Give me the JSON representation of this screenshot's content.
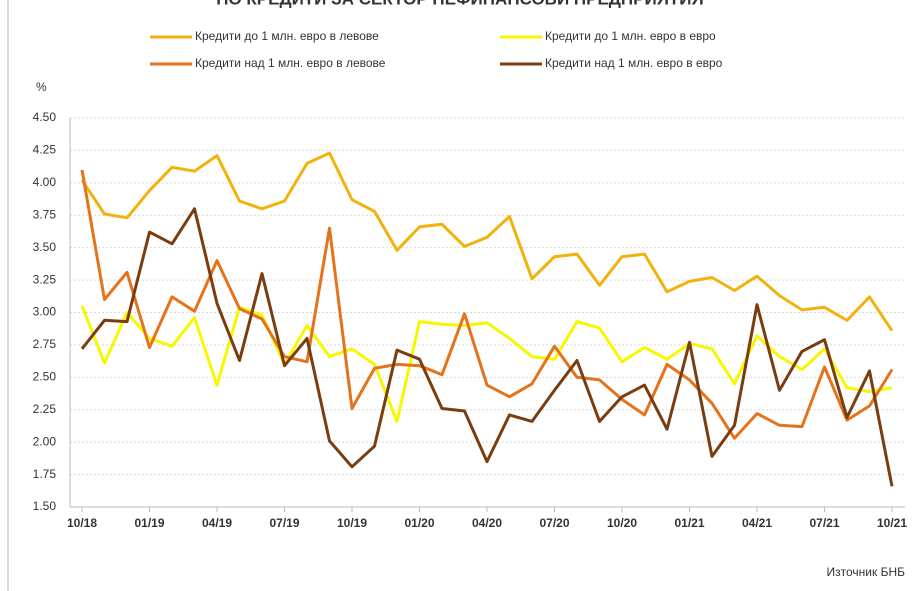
{
  "chart_data": {
    "type": "line",
    "title": "ПО КРЕДИТИ ЗА СЕКТОР НЕФИНАНСОВИ ПРЕДПРИЯТИЯ",
    "y_label": "%",
    "source": "Източник БНБ",
    "categories": [
      "10/18",
      null,
      null,
      "01/19",
      null,
      null,
      "04/19",
      null,
      null,
      "07/19",
      null,
      null,
      "10/19",
      null,
      null,
      "01/20",
      null,
      null,
      "04/20",
      null,
      null,
      "07/20",
      null,
      null,
      "10/20",
      null,
      null,
      "01/21",
      null,
      null,
      "04/21",
      null,
      null,
      "07/21",
      null,
      null,
      "10/21"
    ],
    "series": [
      {
        "name": "Кредити до 1 млн. евро в левове",
        "color": "#f2b20e",
        "values": [
          4.02,
          3.76,
          3.73,
          3.94,
          4.12,
          4.09,
          4.21,
          3.86,
          3.8,
          3.86,
          4.15,
          4.23,
          3.87,
          3.78,
          3.48,
          3.66,
          3.68,
          3.51,
          3.58,
          3.74,
          3.26,
          3.43,
          3.45,
          3.21,
          3.43,
          3.45,
          3.16,
          3.24,
          3.27,
          3.17,
          3.28,
          3.13,
          3.02,
          3.04,
          2.94,
          3.12,
          2.86
        ]
      },
      {
        "name": "Кредити до 1 млн. евро в евро",
        "color": "#f7f700",
        "values": [
          3.05,
          2.61,
          3.0,
          2.8,
          2.74,
          2.96,
          2.44,
          3.04,
          2.98,
          2.6,
          2.9,
          2.66,
          2.72,
          2.6,
          2.16,
          2.93,
          2.91,
          2.9,
          2.92,
          2.8,
          2.66,
          2.64,
          2.93,
          2.88,
          2.62,
          2.73,
          2.64,
          2.76,
          2.72,
          2.45,
          2.82,
          2.66,
          2.56,
          2.72,
          2.42,
          2.39,
          2.42
        ]
      },
      {
        "name": "Кредити над 1 млн. евро в левове",
        "color": "#e5731c",
        "values": [
          4.1,
          3.1,
          3.31,
          2.73,
          3.12,
          3.01,
          3.4,
          3.03,
          2.95,
          2.66,
          2.62,
          3.65,
          2.26,
          2.57,
          2.6,
          2.59,
          2.52,
          2.99,
          2.44,
          2.35,
          2.45,
          2.74,
          2.5,
          2.48,
          2.33,
          2.21,
          2.6,
          2.48,
          2.3,
          2.03,
          2.22,
          2.13,
          2.12,
          2.58,
          2.17,
          2.28,
          2.56
        ]
      },
      {
        "name": "Кредити над 1 млн. евро в евро",
        "color": "#7a3d0f",
        "values": [
          2.72,
          2.94,
          2.93,
          3.62,
          3.53,
          3.8,
          3.07,
          2.63,
          3.3,
          2.59,
          2.8,
          2.01,
          1.81,
          1.97,
          2.71,
          2.64,
          2.26,
          2.24,
          1.85,
          2.21,
          2.16,
          2.4,
          2.63,
          2.16,
          2.35,
          2.44,
          2.1,
          2.77,
          1.89,
          2.13,
          3.06,
          2.4,
          2.7,
          2.79,
          2.19,
          2.55,
          1.66
        ]
      }
    ],
    "ylim": [
      1.5,
      4.5
    ],
    "yticks": [
      {
        "value": 1.5,
        "label": "1.50"
      },
      1.75,
      {
        "value": 2,
        "label": "2.00"
      },
      2.25,
      {
        "value": 2.5,
        "label": "2.50"
      },
      2.75,
      {
        "value": 3,
        "label": "3.00"
      },
      3.25,
      {
        "value": 3.5,
        "label": "3.50"
      },
      3.75,
      {
        "value": 4,
        "label": "4.00"
      },
      4.25,
      {
        "value": 4.5,
        "label": "4.50"
      }
    ],
    "grid": true
  }
}
